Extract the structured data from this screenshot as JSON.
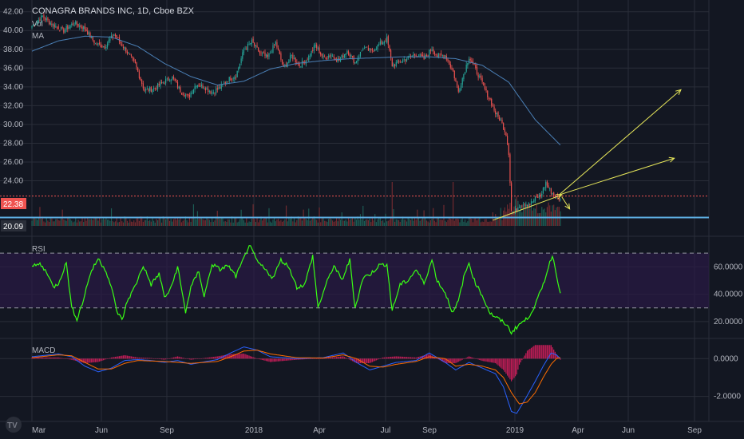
{
  "header": {
    "title": "CONAGRA BRANDS INC, 1D, Cboe BZX",
    "vol_label": "Vol",
    "ma_label": "MA"
  },
  "colors": {
    "background": "#131722",
    "grid": "#2a2e39",
    "up": "#26a69a",
    "down": "#ef5350",
    "ma": "#4a7fb5",
    "rsi": "#39ff14",
    "rsi_band": "#2a1a45",
    "macd_line": "#2962ff",
    "signal_line": "#ff6d00",
    "arrow": "#e6e65a",
    "price_line": "#ef5350",
    "support_line": "#5dade2"
  },
  "chart_data": [
    {
      "type": "candlestick",
      "pane": "price",
      "title": "CONAGRA BRANDS INC, 1D, Cboe BZX",
      "x_ticks": [
        "Mar",
        "Jun",
        "Sep",
        "2018",
        "Apr",
        "Jul",
        "Sep",
        "2019",
        "Apr",
        "Jun",
        "Sep"
      ],
      "ylim": [
        19.2,
        42.4
      ],
      "y_ticks": [
        "42.00",
        "40.00",
        "38.00",
        "36.00",
        "34.00",
        "32.00",
        "30.00",
        "28.00",
        "26.00",
        "24.00"
      ],
      "last_price": "22.38",
      "support_level": "20.09",
      "series": [
        {
          "name": "Vol",
          "values": "daily volume (unlabeled)"
        },
        {
          "name": "MA",
          "values": "moving average (unlabeled)"
        }
      ],
      "anchors": [
        [
          0,
          40.5
        ],
        [
          8,
          41.5
        ],
        [
          16,
          40.6
        ],
        [
          24,
          40.0
        ],
        [
          32,
          40.8
        ],
        [
          40,
          40.2
        ],
        [
          48,
          38.6
        ],
        [
          55,
          38.3
        ],
        [
          62,
          39.6
        ],
        [
          70,
          38.1
        ],
        [
          78,
          36.4
        ],
        [
          85,
          33.6
        ],
        [
          92,
          33.8
        ],
        [
          100,
          34.6
        ],
        [
          106,
          35.0
        ],
        [
          112,
          33.6
        ],
        [
          118,
          32.9
        ],
        [
          124,
          34.3
        ],
        [
          130,
          34.0
        ],
        [
          136,
          33.4
        ],
        [
          142,
          33.9
        ],
        [
          148,
          34.8
        ],
        [
          154,
          35.2
        ],
        [
          160,
          37.9
        ],
        [
          166,
          38.8
        ],
        [
          172,
          37.6
        ],
        [
          178,
          37.1
        ],
        [
          184,
          38.7
        ],
        [
          190,
          36.0
        ],
        [
          196,
          37.3
        ],
        [
          202,
          36.3
        ],
        [
          208,
          37.0
        ],
        [
          214,
          38.4
        ],
        [
          220,
          37.1
        ],
        [
          226,
          37.4
        ],
        [
          232,
          36.8
        ],
        [
          238,
          37.9
        ],
        [
          244,
          36.6
        ],
        [
          250,
          38.1
        ],
        [
          256,
          37.8
        ],
        [
          262,
          38.5
        ],
        [
          268,
          39.1
        ],
        [
          272,
          36.3
        ],
        [
          278,
          36.7
        ],
        [
          284,
          37.1
        ],
        [
          290,
          37.5
        ],
        [
          296,
          37.0
        ],
        [
          302,
          38.1
        ],
        [
          306,
          37.3
        ],
        [
          312,
          37.4
        ],
        [
          318,
          35.6
        ],
        [
          322,
          33.5
        ],
        [
          326,
          35.4
        ],
        [
          330,
          37.2
        ],
        [
          334,
          36.1
        ],
        [
          338,
          35.0
        ],
        [
          342,
          33.7
        ],
        [
          346,
          32.6
        ],
        [
          350,
          31.2
        ],
        [
          354,
          30.4
        ],
        [
          358,
          29.0
        ],
        [
          360,
          27.0
        ],
        [
          362,
          20.8
        ],
        [
          364,
          20.6
        ],
        [
          368,
          21.4
        ],
        [
          372,
          21.6
        ],
        [
          376,
          21.5
        ],
        [
          380,
          22.1
        ],
        [
          384,
          22.4
        ],
        [
          388,
          23.8
        ],
        [
          391,
          23.0
        ],
        [
          395,
          22.4
        ],
        [
          399,
          22.0
        ]
      ],
      "ma_anchors": [
        [
          0,
          37.8
        ],
        [
          20,
          38.9
        ],
        [
          40,
          39.4
        ],
        [
          60,
          39.3
        ],
        [
          80,
          38.3
        ],
        [
          100,
          36.5
        ],
        [
          120,
          35.1
        ],
        [
          140,
          34.2
        ],
        [
          160,
          34.6
        ],
        [
          180,
          35.9
        ],
        [
          200,
          36.5
        ],
        [
          220,
          36.8
        ],
        [
          240,
          37.0
        ],
        [
          260,
          37.1
        ],
        [
          280,
          37.2
        ],
        [
          300,
          37.2
        ],
        [
          320,
          37.0
        ],
        [
          340,
          36.3
        ],
        [
          360,
          34.5
        ],
        [
          380,
          30.5
        ],
        [
          399,
          27.8
        ]
      ],
      "annotations": [
        {
          "type": "arrow",
          "from": [
            348,
            19.8
          ],
          "to": [
            400,
            22.5
          ]
        },
        {
          "type": "arrow",
          "from": [
            398,
            22.5
          ],
          "to": [
            485,
            26.4
          ]
        },
        {
          "type": "arrow",
          "from": [
            398,
            22.5
          ],
          "to": [
            490,
            33.7
          ]
        },
        {
          "type": "arrow",
          "from": [
            400,
            22.3
          ],
          "to": [
            406,
            21.0
          ]
        }
      ]
    },
    {
      "type": "line",
      "pane": "rsi",
      "title": "RSI",
      "ylim": [
        10,
        80
      ],
      "y_ticks": [
        "60.0000",
        "40.0000",
        "20.0000"
      ],
      "upper_band": 70,
      "lower_band": 30,
      "series": [
        {
          "name": "RSI",
          "anchors": [
            [
              0,
              60
            ],
            [
              6,
              62
            ],
            [
              12,
              55
            ],
            [
              16,
              45
            ],
            [
              20,
              48
            ],
            [
              26,
              63
            ],
            [
              30,
              30
            ],
            [
              34,
              22
            ],
            [
              38,
              33
            ],
            [
              44,
              55
            ],
            [
              50,
              66
            ],
            [
              56,
              57
            ],
            [
              60,
              45
            ],
            [
              64,
              28
            ],
            [
              68,
              21
            ],
            [
              72,
              35
            ],
            [
              78,
              46
            ],
            [
              84,
              61
            ],
            [
              90,
              47
            ],
            [
              96,
              55
            ],
            [
              100,
              38
            ],
            [
              104,
              42
            ],
            [
              110,
              60
            ],
            [
              116,
              27
            ],
            [
              120,
              45
            ],
            [
              126,
              57
            ],
            [
              130,
              38
            ],
            [
              136,
              62
            ],
            [
              142,
              58
            ],
            [
              148,
              61
            ],
            [
              154,
              53
            ],
            [
              160,
              66
            ],
            [
              164,
              76
            ],
            [
              170,
              64
            ],
            [
              176,
              58
            ],
            [
              182,
              52
            ],
            [
              188,
              65
            ],
            [
              194,
              60
            ],
            [
              200,
              45
            ],
            [
              206,
              47
            ],
            [
              212,
              68
            ],
            [
              216,
              30
            ],
            [
              222,
              47
            ],
            [
              228,
              61
            ],
            [
              234,
              50
            ],
            [
              240,
              65
            ],
            [
              244,
              30
            ],
            [
              250,
              52
            ],
            [
              256,
              55
            ],
            [
              262,
              61
            ],
            [
              268,
              62
            ],
            [
              272,
              28
            ],
            [
              278,
              47
            ],
            [
              284,
              50
            ],
            [
              290,
              58
            ],
            [
              296,
              48
            ],
            [
              302,
              65
            ],
            [
              306,
              50
            ],
            [
              312,
              41
            ],
            [
              318,
              26
            ],
            [
              322,
              35
            ],
            [
              326,
              52
            ],
            [
              330,
              63
            ],
            [
              334,
              50
            ],
            [
              340,
              39
            ],
            [
              346,
              26
            ],
            [
              352,
              22
            ],
            [
              358,
              18
            ],
            [
              362,
              12
            ],
            [
              368,
              18
            ],
            [
              374,
              22
            ],
            [
              380,
              32
            ],
            [
              386,
              47
            ],
            [
              390,
              60
            ],
            [
              393,
              69
            ],
            [
              396,
              54
            ],
            [
              399,
              42
            ]
          ]
        }
      ]
    },
    {
      "type": "line",
      "pane": "macd",
      "title": "MACD",
      "ylim": [
        -3.2,
        0.9
      ],
      "y_ticks": [
        "0.0000",
        "-2.0000"
      ],
      "series": [
        {
          "name": "MACD",
          "anchors": [
            [
              0,
              0.1
            ],
            [
              20,
              0.25
            ],
            [
              30,
              0.1
            ],
            [
              40,
              -0.4
            ],
            [
              50,
              -0.7
            ],
            [
              60,
              -0.5
            ],
            [
              70,
              -0.1
            ],
            [
              80,
              -0.05
            ],
            [
              90,
              -0.1
            ],
            [
              100,
              -0.2
            ],
            [
              110,
              -0.1
            ],
            [
              120,
              -0.3
            ],
            [
              140,
              -0.05
            ],
            [
              150,
              0.3
            ],
            [
              160,
              0.62
            ],
            [
              170,
              0.45
            ],
            [
              180,
              0.1
            ],
            [
              200,
              0.0
            ],
            [
              220,
              0.05
            ],
            [
              235,
              0.3
            ],
            [
              245,
              -0.2
            ],
            [
              255,
              -0.6
            ],
            [
              265,
              -0.4
            ],
            [
              275,
              -0.2
            ],
            [
              290,
              -0.1
            ],
            [
              300,
              0.3
            ],
            [
              312,
              -0.2
            ],
            [
              320,
              -0.6
            ],
            [
              330,
              -0.2
            ],
            [
              340,
              -0.5
            ],
            [
              350,
              -0.8
            ],
            [
              356,
              -1.5
            ],
            [
              362,
              -2.8
            ],
            [
              366,
              -2.9
            ],
            [
              372,
              -2.2
            ],
            [
              380,
              -1.2
            ],
            [
              386,
              -0.4
            ],
            [
              392,
              0.3
            ],
            [
              396,
              0.2
            ],
            [
              399,
              0.0
            ]
          ]
        },
        {
          "name": "Signal",
          "anchors": [
            [
              0,
              0.05
            ],
            [
              20,
              0.2
            ],
            [
              30,
              0.15
            ],
            [
              40,
              -0.2
            ],
            [
              50,
              -0.55
            ],
            [
              60,
              -0.55
            ],
            [
              70,
              -0.25
            ],
            [
              80,
              -0.1
            ],
            [
              100,
              -0.15
            ],
            [
              120,
              -0.25
            ],
            [
              140,
              -0.15
            ],
            [
              150,
              0.1
            ],
            [
              160,
              0.4
            ],
            [
              170,
              0.45
            ],
            [
              180,
              0.25
            ],
            [
              200,
              0.05
            ],
            [
              220,
              0.03
            ],
            [
              235,
              0.2
            ],
            [
              245,
              0.0
            ],
            [
              255,
              -0.4
            ],
            [
              265,
              -0.45
            ],
            [
              275,
              -0.3
            ],
            [
              290,
              -0.15
            ],
            [
              300,
              0.1
            ],
            [
              312,
              0.0
            ],
            [
              320,
              -0.4
            ],
            [
              330,
              -0.3
            ],
            [
              340,
              -0.4
            ],
            [
              350,
              -0.6
            ],
            [
              356,
              -1.0
            ],
            [
              362,
              -1.8
            ],
            [
              368,
              -2.4
            ],
            [
              374,
              -2.3
            ],
            [
              380,
              -1.8
            ],
            [
              386,
              -1.0
            ],
            [
              392,
              -0.3
            ],
            [
              396,
              0.0
            ],
            [
              399,
              0.05
            ]
          ]
        }
      ]
    }
  ]
}
